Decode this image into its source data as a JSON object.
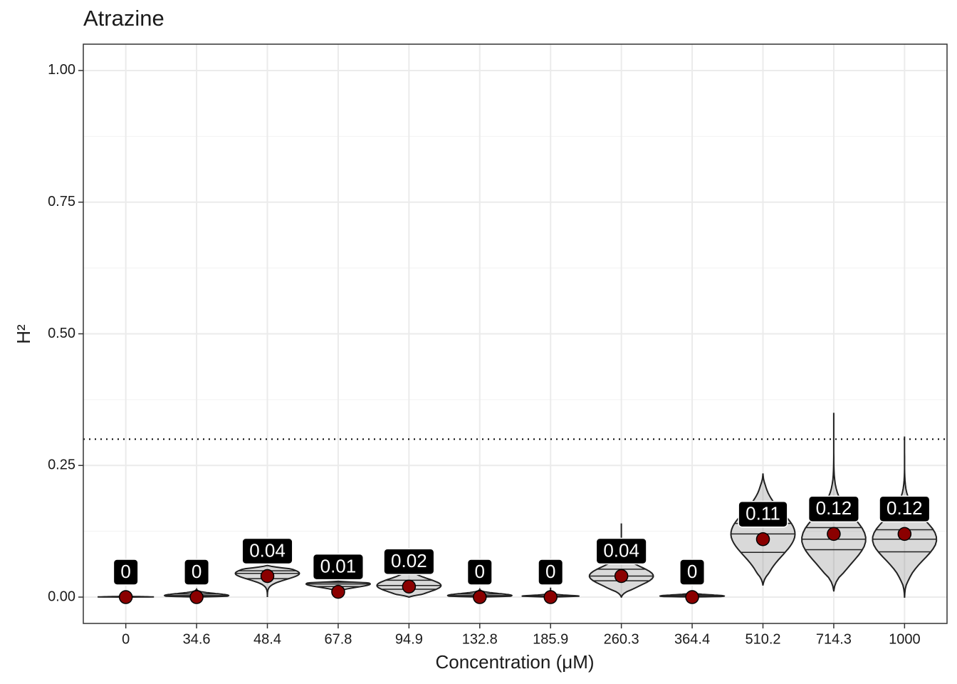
{
  "chart_data": {
    "type": "violin",
    "title": "Atrazine",
    "xlabel": "Concentration (μM)",
    "ylabel": "H²",
    "categories": [
      "0",
      "34.6",
      "48.4",
      "67.8",
      "94.9",
      "132.8",
      "185.9",
      "260.3",
      "364.4",
      "510.2",
      "714.3",
      "1000"
    ],
    "values": [
      0,
      0,
      0.04,
      0.01,
      0.02,
      0,
      0,
      0.04,
      0,
      0.11,
      0.12,
      0.12
    ],
    "point_color": "#8b0000",
    "distribution": [
      {
        "min": 0,
        "q1": 0,
        "median": 0,
        "q3": 0.001,
        "max": 0.003
      },
      {
        "min": 0,
        "q1": 0.001,
        "median": 0.003,
        "q3": 0.006,
        "max": 0.015
      },
      {
        "min": 0,
        "q1": 0.035,
        "median": 0.045,
        "q3": 0.05,
        "max": 0.06
      },
      {
        "min": 0.003,
        "q1": 0.02,
        "median": 0.025,
        "q3": 0.028,
        "max": 0.03
      },
      {
        "min": 0,
        "q1": 0.015,
        "median": 0.022,
        "q3": 0.032,
        "max": 0.05
      },
      {
        "min": 0,
        "q1": 0.001,
        "median": 0.003,
        "q3": 0.006,
        "max": 0.015
      },
      {
        "min": 0,
        "q1": 0,
        "median": 0.001,
        "q3": 0.002,
        "max": 0.018
      },
      {
        "min": 0,
        "q1": 0.031,
        "median": 0.04,
        "q3": 0.053,
        "max": 0.14
      },
      {
        "min": 0,
        "q1": 0.001,
        "median": 0.002,
        "q3": 0.004,
        "max": 0.012
      },
      {
        "min": 0.023,
        "q1": 0.085,
        "median": 0.12,
        "q3": 0.14,
        "max": 0.235
      },
      {
        "min": 0.012,
        "q1": 0.09,
        "median": 0.11,
        "q3": 0.132,
        "max": 0.35
      },
      {
        "min": 0,
        "q1": 0.086,
        "median": 0.11,
        "q3": 0.128,
        "max": 0.305
      }
    ],
    "hline": 0.3,
    "ylim": [
      -0.05,
      1.05
    ],
    "yticks": [
      {
        "value": 0,
        "label": "0.00"
      },
      {
        "value": 0.25,
        "label": "0.25"
      },
      {
        "value": 0.5,
        "label": "0.50"
      },
      {
        "value": 0.75,
        "label": "0.75"
      },
      {
        "value": 1,
        "label": "1.00"
      }
    ],
    "grid": true,
    "minor_grid": true
  }
}
